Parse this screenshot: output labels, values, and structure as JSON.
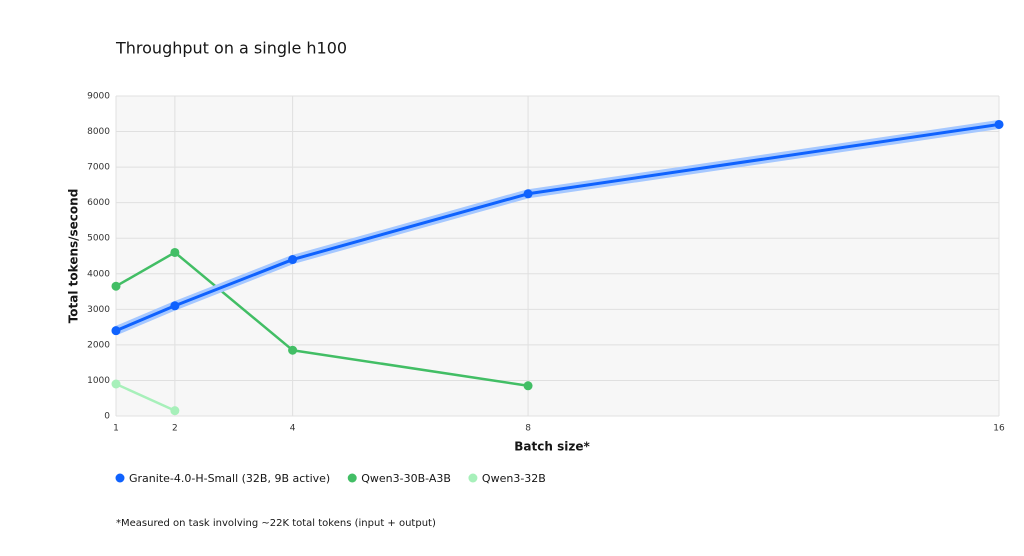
{
  "chart_data": {
    "type": "line",
    "title": "Throughput on a single h100",
    "x_label": "Batch size*",
    "y_label": "Total tokens/second",
    "x": [
      1,
      2,
      4,
      8,
      16
    ],
    "series": [
      {
        "name": "Granite-4.0-H-Small (32B, 9B active)",
        "color": "#0f62fe",
        "halo": "#a6c8ff",
        "values": [
          2400,
          3100,
          4400,
          6250,
          8200
        ]
      },
      {
        "name": "Qwen3-30B-A3B",
        "color": "#42be65",
        "values": [
          3650,
          4600,
          1850,
          850,
          null
        ]
      },
      {
        "name": "Qwen3-32B",
        "color": "#a7f0ba",
        "values": [
          900,
          150,
          null,
          null,
          null
        ]
      }
    ],
    "xlim": [
      1,
      16
    ],
    "xticks": [
      1,
      2,
      4,
      8,
      16
    ],
    "ylim": [
      0,
      9000
    ],
    "yticks": [
      0,
      1000,
      2000,
      3000,
      4000,
      5000,
      6000,
      7000,
      8000,
      9000
    ],
    "grid": true,
    "legend": "bottom",
    "note": "*Measured on task involving ~22K total tokens (input + output)"
  }
}
